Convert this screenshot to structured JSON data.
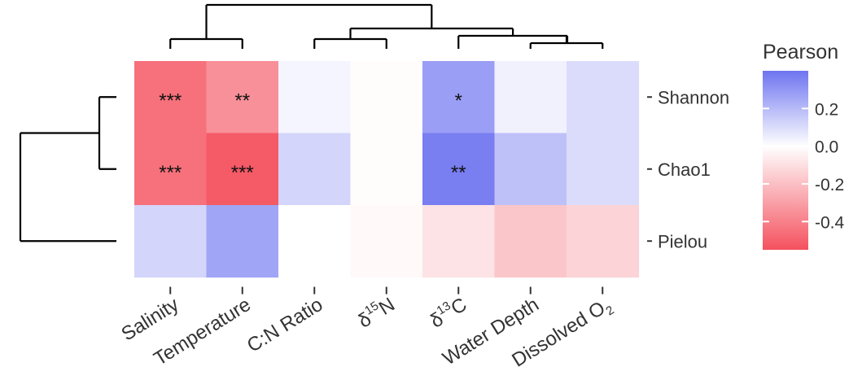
{
  "chart_data": {
    "type": "heatmap",
    "title": "",
    "x_categories": [
      "Salinity",
      "Temperature",
      "C:N Ratio",
      "δ15N",
      "δ13C",
      "Water Depth",
      "Dissolved O2"
    ],
    "x_labels_display": [
      {
        "base": "Salinity",
        "sup": "",
        "sub": "",
        "tail": ""
      },
      {
        "base": "Temperature",
        "sup": "",
        "sub": "",
        "tail": ""
      },
      {
        "base": "C:N Ratio",
        "sup": "",
        "sub": "",
        "tail": ""
      },
      {
        "base": "δ",
        "sup": "15",
        "sub": "",
        "tail": "N"
      },
      {
        "base": "δ",
        "sup": "13",
        "sub": "",
        "tail": "C"
      },
      {
        "base": "Water Depth",
        "sup": "",
        "sub": "",
        "tail": ""
      },
      {
        "base": "Dissolved O",
        "sup": "",
        "sub": "2",
        "tail": ""
      }
    ],
    "y_categories": [
      "Shannon",
      "Chao1",
      "Pielou"
    ],
    "values": [
      [
        -0.45,
        -0.35,
        0.03,
        -0.01,
        0.28,
        0.04,
        0.1
      ],
      [
        -0.45,
        -0.52,
        0.12,
        -0.01,
        0.37,
        0.18,
        0.1
      ],
      [
        0.12,
        0.26,
        0.0,
        -0.02,
        -0.09,
        -0.18,
        -0.14
      ]
    ],
    "significance": [
      [
        "***",
        "**",
        "",
        "",
        "*",
        "",
        ""
      ],
      [
        "***",
        "***",
        "",
        "",
        "**",
        "",
        ""
      ],
      [
        "",
        "",
        "",
        "",
        "",
        "",
        ""
      ]
    ],
    "legend": {
      "title": "Pearson",
      "ticks": [
        0.2,
        0.0,
        -0.2,
        -0.4
      ],
      "tick_labels": [
        "0.2",
        "0.0",
        "-0.2",
        "-0.4"
      ],
      "range": [
        -0.55,
        0.4
      ],
      "placement": "right",
      "colors": {
        "low": "#f4515e",
        "mid": "#ffffff",
        "high": "#6e74f0"
      }
    },
    "dendrogram_columns": "top",
    "dendrogram_rows": "left",
    "grid": false
  }
}
